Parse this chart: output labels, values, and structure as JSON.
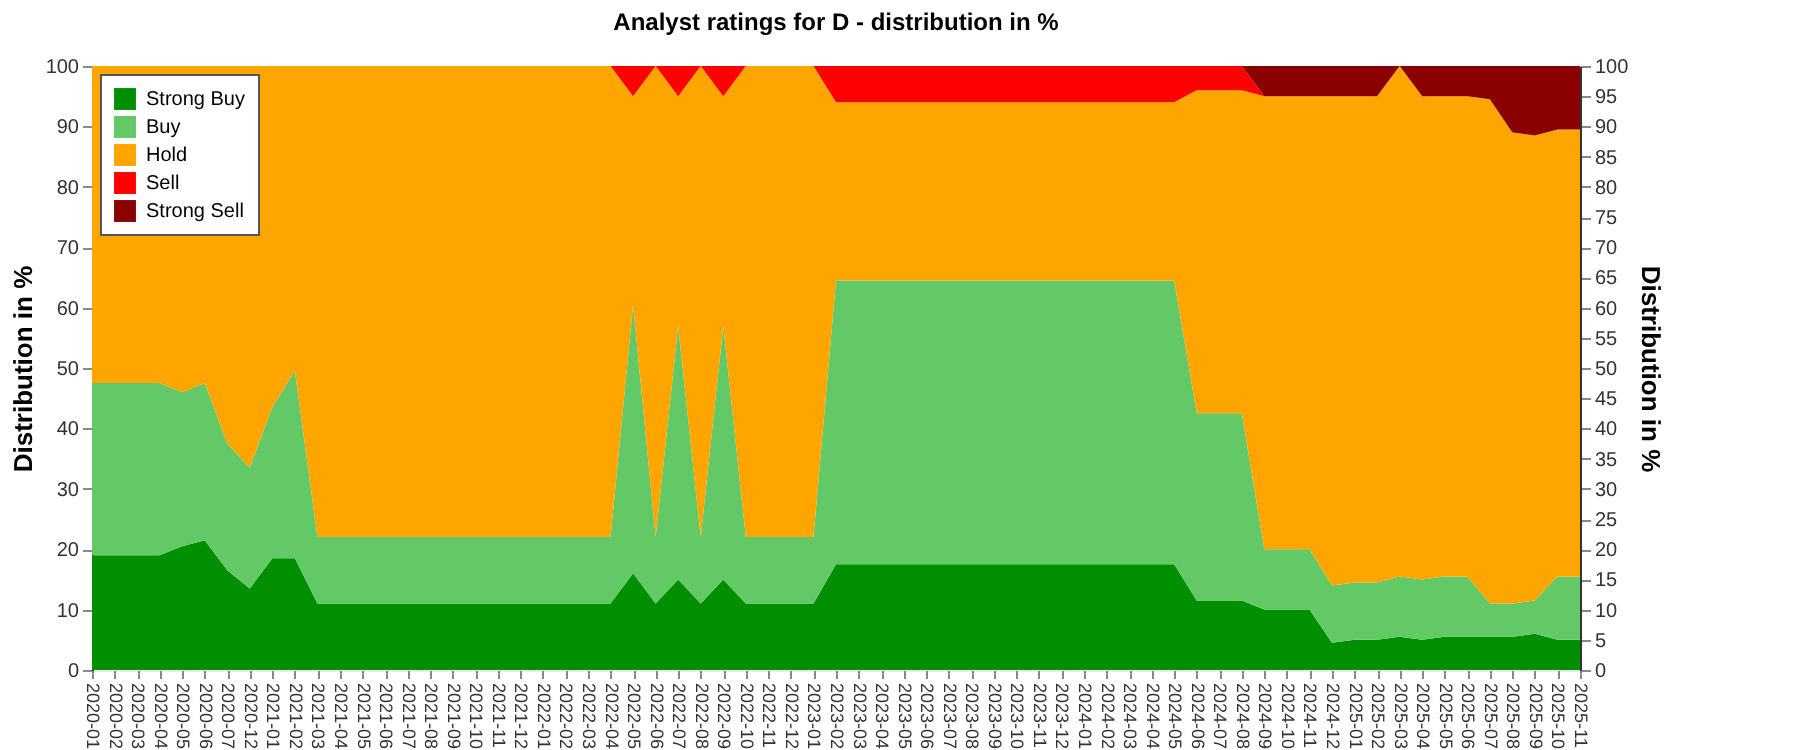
{
  "chart_data": {
    "type": "area",
    "stacked": true,
    "title": "Analyst ratings for D - distribution in %",
    "ylabel": "Distribution in %",
    "y2label": "Distribution in %",
    "categories": [
      "2020-01",
      "2020-02",
      "2020-03",
      "2020-04",
      "2020-05",
      "2020-06",
      "2020-07",
      "2020-12",
      "2021-01",
      "2021-02",
      "2021-03",
      "2021-04",
      "2021-05",
      "2021-06",
      "2021-07",
      "2021-08",
      "2021-09",
      "2021-10",
      "2021-11",
      "2021-12",
      "2022-01",
      "2022-02",
      "2022-03",
      "2022-04",
      "2022-05",
      "2022-06",
      "2022-07",
      "2022-08",
      "2022-09",
      "2022-10",
      "2022-11",
      "2022-12",
      "2023-01",
      "2023-02",
      "2023-03",
      "2023-04",
      "2023-05",
      "2023-06",
      "2023-07",
      "2023-08",
      "2023-09",
      "2023-10",
      "2023-11",
      "2023-12",
      "2024-01",
      "2024-02",
      "2024-03",
      "2024-04",
      "2024-05",
      "2024-06",
      "2024-07",
      "2024-08",
      "2024-09",
      "2024-10",
      "2024-11",
      "2024-12",
      "2025-01",
      "2025-02",
      "2025-03",
      "2025-04",
      "2025-05",
      "2025-06",
      "2025-07",
      "2025-08",
      "2025-09",
      "2025-10",
      "2025-11"
    ],
    "series": [
      {
        "name": "Strong Buy",
        "color": "#008f00",
        "values": [
          19,
          19,
          19,
          19,
          20.5,
          21.5,
          16.5,
          13.5,
          18.5,
          18.5,
          11,
          11,
          11,
          11,
          11,
          11,
          11,
          11,
          11,
          11,
          11,
          11,
          11,
          11,
          16,
          11,
          15,
          11,
          15,
          11,
          11,
          11,
          11,
          17.5,
          17.5,
          17.5,
          17.5,
          17.5,
          17.5,
          17.5,
          17.5,
          17.5,
          17.5,
          17.5,
          17.5,
          17.5,
          17.5,
          17.5,
          17.5,
          11.5,
          11.5,
          11.5,
          10,
          10,
          10,
          4.5,
          5,
          5,
          5.5,
          5,
          5.5,
          5.5,
          5.5,
          5.5,
          6,
          5,
          5
        ]
      },
      {
        "name": "Buy",
        "color": "#63c966",
        "values": [
          28.5,
          28.5,
          28.5,
          28.5,
          25.5,
          26,
          21,
          20,
          25,
          31,
          11,
          11,
          11,
          11,
          11,
          11,
          11,
          11,
          11,
          11,
          11,
          11,
          11,
          11,
          44.5,
          11,
          42,
          11,
          42,
          11,
          11,
          11,
          11,
          47,
          47,
          47,
          47,
          47,
          47,
          47,
          47,
          47,
          47,
          47,
          47,
          47,
          47,
          47,
          47,
          31,
          31,
          31,
          10,
          10,
          10,
          9.5,
          9.5,
          9.5,
          10,
          10,
          10,
          10,
          5.5,
          5.5,
          5.5,
          10.5,
          10.5
        ]
      },
      {
        "name": "Hold",
        "color": "#ffa500",
        "values": [
          52.5,
          52.5,
          52.5,
          52.5,
          54,
          52.5,
          62.5,
          66.5,
          56.5,
          50.5,
          78,
          78,
          78,
          78,
          78,
          78,
          78,
          78,
          78,
          78,
          78,
          78,
          78,
          78,
          34.5,
          78,
          38,
          78,
          38,
          78,
          78,
          78,
          78,
          29.5,
          29.5,
          29.5,
          29.5,
          29.5,
          29.5,
          29.5,
          29.5,
          29.5,
          29.5,
          29.5,
          29.5,
          29.5,
          29.5,
          29.5,
          29.5,
          53.5,
          53.5,
          53.5,
          75,
          75,
          75,
          81,
          80.5,
          80.5,
          84.5,
          80,
          79.5,
          79.5,
          83.5,
          78,
          77,
          74,
          74
        ]
      },
      {
        "name": "Sell",
        "color": "#ff0000",
        "values": [
          null,
          null,
          null,
          null,
          null,
          null,
          null,
          null,
          null,
          null,
          null,
          null,
          null,
          null,
          null,
          null,
          null,
          null,
          null,
          null,
          null,
          null,
          null,
          0,
          5,
          0,
          5,
          0,
          5,
          0,
          null,
          null,
          0,
          6,
          6,
          6,
          6,
          6,
          6,
          6,
          6,
          6,
          6,
          6,
          6,
          6,
          6,
          6,
          6,
          4,
          4,
          4,
          0,
          null,
          null,
          null,
          null,
          null,
          null,
          null,
          null,
          null,
          null,
          null,
          null,
          null,
          null
        ]
      },
      {
        "name": "Strong Sell",
        "color": "#8b0000",
        "values": [
          null,
          null,
          null,
          null,
          null,
          null,
          null,
          null,
          null,
          null,
          null,
          null,
          null,
          null,
          null,
          null,
          null,
          null,
          null,
          null,
          null,
          null,
          null,
          null,
          null,
          null,
          null,
          null,
          null,
          null,
          null,
          null,
          null,
          null,
          null,
          null,
          null,
          null,
          null,
          null,
          null,
          null,
          null,
          null,
          null,
          null,
          null,
          null,
          null,
          null,
          null,
          0,
          5,
          5,
          5,
          5,
          5,
          5,
          0,
          5,
          5,
          5,
          5.5,
          11,
          11.5,
          10.5,
          10.5
        ]
      }
    ],
    "ylim": [
      0,
      100
    ],
    "yticks": [
      0,
      10,
      20,
      30,
      40,
      50,
      60,
      70,
      80,
      90,
      100
    ],
    "y2lim": [
      0,
      100
    ],
    "y2ticks": [
      0,
      5,
      10,
      15,
      20,
      25,
      30,
      35,
      40,
      45,
      50,
      55,
      60,
      65,
      70,
      75,
      80,
      85,
      90,
      95,
      100
    ],
    "grid": "y",
    "legend": "top left"
  }
}
